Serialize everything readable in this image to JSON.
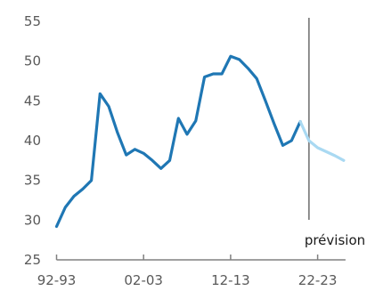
{
  "chart_data": {
    "type": "line",
    "title": "",
    "xlabel": "",
    "ylabel": "",
    "ylim": [
      25,
      55
    ],
    "yticks": [
      25,
      30,
      35,
      40,
      45,
      50,
      55
    ],
    "x_tick_labels": [
      "92-93",
      "02-03",
      "12-13",
      "22-23"
    ],
    "grid": false,
    "colors": {
      "actual": "#1f77b4",
      "forecast": "#a9d9f2",
      "divider": "#808080",
      "axis": "#808080"
    },
    "series": [
      {
        "x": [
          "92-93",
          "93-94",
          "94-95",
          "95-96",
          "96-97",
          "97-98",
          "98-99",
          "99-00",
          "00-01",
          "01-02",
          "02-03",
          "03-04",
          "04-05",
          "05-06",
          "06-07",
          "07-08",
          "08-09",
          "09-10",
          "10-11",
          "11-12",
          "12-13",
          "13-14",
          "14-15",
          "15-16",
          "16-17",
          "17-18",
          "18-19",
          "19-20",
          "20-21"
        ],
        "values": [
          29.2,
          31.6,
          33.0,
          33.9,
          35.0,
          45.9,
          44.3,
          41.0,
          38.2,
          38.9,
          38.4,
          37.5,
          36.5,
          37.5,
          42.8,
          40.8,
          42.5,
          48.0,
          48.4,
          48.4,
          50.6,
          50.2,
          49.1,
          47.8,
          45.0,
          42.1,
          39.4,
          40.0,
          42.4
        ]
      },
      {
        "x": [
          "20-21",
          "21-22",
          "22-23",
          "23-24",
          "24-25",
          "25-26"
        ],
        "values": [
          42.4,
          40.0,
          39.1,
          38.6,
          38.1,
          37.5
        ]
      }
    ],
    "annotations": [
      {
        "text": "prévision",
        "x": "21-22"
      }
    ]
  }
}
